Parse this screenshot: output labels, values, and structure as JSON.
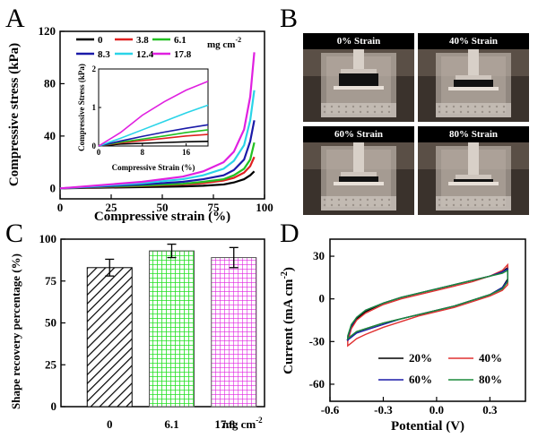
{
  "figure": {
    "panel_letters": [
      "A",
      "B",
      "C",
      "D"
    ]
  },
  "chart_data": [
    {
      "panel": "A",
      "type": "line",
      "xlabel": "Compressive strain (%)",
      "ylabel": "Compressive stress (kPa)",
      "xlim": [
        0,
        100
      ],
      "ylim": [
        -8,
        120
      ],
      "xticks": [
        0,
        25,
        50,
        75,
        100
      ],
      "yticks": [
        0,
        40,
        80,
        120
      ],
      "legend_unit": "mg cm",
      "legend_unit_sup": "-2",
      "series": [
        {
          "name": "0",
          "color": "#000000",
          "x": [
            0,
            20,
            40,
            60,
            70,
            80,
            85,
            90,
            93,
            95
          ],
          "y": [
            0,
            0.5,
            1,
            1.5,
            2,
            3,
            4.5,
            7,
            10,
            13
          ]
        },
        {
          "name": "3.8",
          "color": "#e02020",
          "x": [
            0,
            20,
            40,
            60,
            70,
            80,
            85,
            90,
            93,
            95
          ],
          "y": [
            0,
            1,
            1.8,
            3,
            4,
            6,
            8,
            12,
            17,
            24
          ]
        },
        {
          "name": "6.1",
          "color": "#22c022",
          "x": [
            0,
            20,
            40,
            60,
            70,
            80,
            85,
            90,
            93,
            95
          ],
          "y": [
            0,
            1.2,
            2.2,
            3.5,
            5,
            7,
            10,
            15,
            22,
            35
          ]
        },
        {
          "name": "8.3",
          "color": "#1a1aa8",
          "x": [
            0,
            20,
            40,
            60,
            70,
            80,
            85,
            90,
            93,
            95
          ],
          "y": [
            0,
            1.5,
            3,
            5,
            7,
            10,
            14,
            22,
            36,
            52
          ]
        },
        {
          "name": "12.4",
          "color": "#2ad4e8",
          "x": [
            0,
            20,
            40,
            60,
            70,
            80,
            85,
            90,
            93,
            95
          ],
          "y": [
            0,
            2,
            4,
            7,
            10,
            15,
            21,
            33,
            52,
            75
          ]
        },
        {
          "name": "17.8",
          "color": "#e020e0",
          "x": [
            0,
            20,
            40,
            60,
            70,
            80,
            85,
            90,
            93,
            95
          ],
          "y": [
            0,
            2.5,
            5,
            9,
            13,
            20,
            28,
            45,
            70,
            104
          ]
        }
      ],
      "inset": {
        "xlabel": "Compressive Strain (%)",
        "ylabel": "Compressive Stress (kPa)",
        "xlim": [
          0,
          20
        ],
        "ylim": [
          0,
          2
        ],
        "xticks": [
          0,
          8,
          16
        ],
        "yticks": [
          0,
          1,
          2
        ],
        "series": [
          {
            "name": "0",
            "color": "#000000",
            "x": [
              0,
              4,
              8,
              12,
              16,
              20
            ],
            "y": [
              0,
              0.05,
              0.07,
              0.09,
              0.11,
              0.12
            ]
          },
          {
            "name": "3.8",
            "color": "#e02020",
            "x": [
              0,
              4,
              8,
              12,
              16,
              20
            ],
            "y": [
              0,
              0.08,
              0.14,
              0.2,
              0.26,
              0.3
            ]
          },
          {
            "name": "6.1",
            "color": "#22c022",
            "x": [
              0,
              4,
              8,
              12,
              16,
              20
            ],
            "y": [
              0,
              0.1,
              0.18,
              0.26,
              0.35,
              0.42
            ]
          },
          {
            "name": "8.3",
            "color": "#1a1aa8",
            "x": [
              0,
              4,
              8,
              12,
              16,
              20
            ],
            "y": [
              0,
              0.13,
              0.25,
              0.36,
              0.46,
              0.55
            ]
          },
          {
            "name": "12.4",
            "color": "#2ad4e8",
            "x": [
              0,
              4,
              8,
              12,
              16,
              20
            ],
            "y": [
              0,
              0.2,
              0.42,
              0.64,
              0.86,
              1.06
            ]
          },
          {
            "name": "17.8",
            "color": "#e020e0",
            "x": [
              0,
              4,
              8,
              12,
              16,
              20
            ],
            "y": [
              0,
              0.35,
              0.8,
              1.15,
              1.45,
              1.68
            ]
          }
        ]
      }
    },
    {
      "panel": "C",
      "type": "bar",
      "ylabel": "Shape recovery percentage (%)",
      "ylim": [
        0,
        100
      ],
      "yticks": [
        0,
        25,
        50,
        75,
        100
      ],
      "categories": [
        "0",
        "6.1",
        "17.8"
      ],
      "category_unit": "mg cm",
      "category_unit_sup": "-2",
      "values": [
        83,
        93,
        89
      ],
      "errors": [
        5,
        4,
        6
      ],
      "colors": [
        "#000000",
        "#22e022",
        "#e020e0"
      ]
    },
    {
      "panel": "D",
      "type": "line",
      "xlabel": "Potential (V)",
      "ylabel": "Current (mA cm",
      "ylabel_sup": "-2",
      "ylabel_end": ")",
      "xlim": [
        -0.6,
        0.5
      ],
      "ylim": [
        -72,
        42
      ],
      "xticks": [
        -0.6,
        -0.3,
        0.0,
        0.3
      ],
      "xtick_labels": [
        "-0.6",
        "-0.3",
        "0.0",
        "0.3"
      ],
      "yticks": [
        -60,
        -30,
        0,
        30
      ],
      "series": [
        {
          "name": "20%",
          "color": "#000000",
          "upper": {
            "x": [
              -0.5,
              -0.48,
              -0.45,
              -0.4,
              -0.3,
              -0.2,
              -0.1,
              0.0,
              0.1,
              0.2,
              0.3,
              0.37,
              0.4
            ],
            "y": [
              -28,
              -20,
              -14,
              -9,
              -3,
              1,
              4,
              7,
              10,
              13,
              16,
              19,
              22
            ]
          },
          "lower": {
            "x": [
              -0.5,
              -0.48,
              -0.45,
              -0.4,
              -0.3,
              -0.2,
              -0.1,
              0.0,
              0.1,
              0.2,
              0.3,
              0.37,
              0.4
            ],
            "y": [
              -28,
              -26,
              -23,
              -21,
              -17,
              -14,
              -11,
              -8,
              -5,
              -1,
              3,
              8,
              14
            ]
          }
        },
        {
          "name": "40%",
          "color": "#e03030",
          "upper": {
            "x": [
              -0.5,
              -0.48,
              -0.45,
              -0.4,
              -0.3,
              -0.2,
              -0.1,
              0.0,
              0.1,
              0.2,
              0.3,
              0.37,
              0.4
            ],
            "y": [
              -30,
              -21,
              -15,
              -10,
              -4,
              0,
              3,
              6,
              9,
              12,
              16,
              20,
              24
            ]
          },
          "lower": {
            "x": [
              -0.5,
              -0.48,
              -0.45,
              -0.4,
              -0.3,
              -0.2,
              -0.1,
              0.0,
              0.1,
              0.2,
              0.3,
              0.37,
              0.4
            ],
            "y": [
              -33,
              -31,
              -28,
              -25,
              -20,
              -16,
              -12,
              -9,
              -6,
              -2,
              2,
              6,
              10
            ]
          }
        },
        {
          "name": "60%",
          "color": "#1a1aa8",
          "upper": {
            "x": [
              -0.5,
              -0.48,
              -0.45,
              -0.4,
              -0.3,
              -0.2,
              -0.1,
              0.0,
              0.1,
              0.2,
              0.3,
              0.37,
              0.4
            ],
            "y": [
              -27,
              -19,
              -13,
              -8,
              -3,
              1,
              4,
              7,
              10,
              13,
              16,
              19,
              21
            ]
          },
          "lower": {
            "x": [
              -0.5,
              -0.48,
              -0.45,
              -0.4,
              -0.3,
              -0.2,
              -0.1,
              0.0,
              0.1,
              0.2,
              0.3,
              0.37,
              0.4
            ],
            "y": [
              -29,
              -27,
              -24,
              -22,
              -18,
              -14,
              -11,
              -8,
              -5,
              -1,
              3,
              8,
              13
            ]
          }
        },
        {
          "name": "80%",
          "color": "#1a8a3a",
          "upper": {
            "x": [
              -0.5,
              -0.48,
              -0.45,
              -0.4,
              -0.3,
              -0.2,
              -0.1,
              0.0,
              0.1,
              0.2,
              0.3,
              0.37,
              0.4
            ],
            "y": [
              -26,
              -18,
              -13,
              -8,
              -3,
              1,
              4,
              7,
              10,
              13,
              16,
              18,
              20
            ]
          },
          "lower": {
            "x": [
              -0.5,
              -0.48,
              -0.45,
              -0.4,
              -0.3,
              -0.2,
              -0.1,
              0.0,
              0.1,
              0.2,
              0.3,
              0.37,
              0.4
            ],
            "y": [
              -28,
              -26,
              -23,
              -21,
              -17,
              -14,
              -11,
              -8,
              -5,
              -1,
              3,
              7,
              12
            ]
          }
        }
      ]
    }
  ],
  "photos": [
    {
      "panel": "B",
      "caption": "0% Strain",
      "strain_percent": 0
    },
    {
      "panel": "B",
      "caption": "40% Strain",
      "strain_percent": 40
    },
    {
      "panel": "B",
      "caption": "60% Strain",
      "strain_percent": 60
    },
    {
      "panel": "B",
      "caption": "80% Strain",
      "strain_percent": 80
    }
  ]
}
